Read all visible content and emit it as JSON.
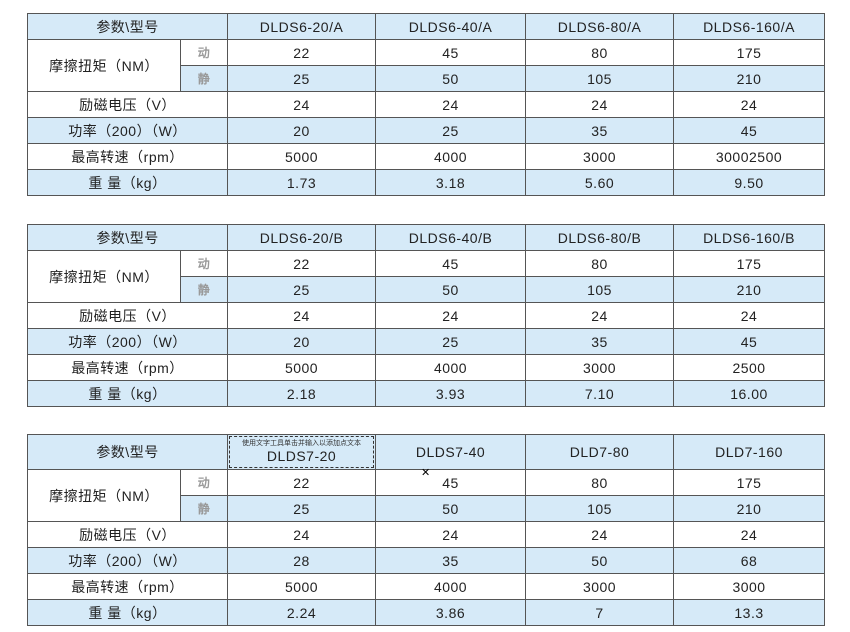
{
  "tables": [
    {
      "header_label": "参数\\型号",
      "models": [
        "DLDS6-20/A",
        "DLDS6-40/A",
        "DLDS6-80/A",
        "DLDS6-160/A"
      ],
      "torque_label": "摩擦扭矩（NM）",
      "dynamic_icon": "动",
      "static_icon": "静",
      "rows": [
        [
          "22",
          "45",
          "80",
          "175"
        ],
        [
          "25",
          "50",
          "105",
          "210"
        ]
      ],
      "other_rows": [
        {
          "label": "励磁电压（V）",
          "values": [
            "24",
            "24",
            "24",
            "24"
          ]
        },
        {
          "label": "功率（200）（W）",
          "values": [
            "20",
            "25",
            "35",
            "45"
          ]
        },
        {
          "label": "最高转速（rpm）",
          "values": [
            "5000",
            "4000",
            "3000",
            "30002500"
          ]
        },
        {
          "label": "重 量（kg）",
          "values": [
            "1.73",
            "3.18",
            "5.60",
            "9.50"
          ]
        }
      ]
    },
    {
      "header_label": "参数\\型号",
      "models": [
        "DLDS6-20/B",
        "DLDS6-40/B",
        "DLDS6-80/B",
        "DLDS6-160/B"
      ],
      "torque_label": "摩擦扭矩（NM）",
      "dynamic_icon": "动",
      "static_icon": "静",
      "rows": [
        [
          "22",
          "45",
          "80",
          "175"
        ],
        [
          "25",
          "50",
          "105",
          "210"
        ]
      ],
      "other_rows": [
        {
          "label": "励磁电压（V）",
          "values": [
            "24",
            "24",
            "24",
            "24"
          ]
        },
        {
          "label": "功率（200）（W）",
          "values": [
            "20",
            "25",
            "35",
            "45"
          ]
        },
        {
          "label": "最高转速（rpm）",
          "values": [
            "5000",
            "4000",
            "3000",
            "2500"
          ]
        },
        {
          "label": "重 量（kg）",
          "values": [
            "2.18",
            "3.93",
            "7.10",
            "16.00"
          ]
        }
      ]
    },
    {
      "header_label": "参数\\型号",
      "models": [
        "DLDS7-20",
        "DLDS7-40",
        "DLD7-80",
        "DLD7-160"
      ],
      "torque_label": "摩擦扭矩（NM）",
      "dynamic_icon": "动",
      "static_icon": "静",
      "rows": [
        [
          "22",
          "45",
          "80",
          "175"
        ],
        [
          "25",
          "50",
          "105",
          "210"
        ]
      ],
      "other_rows": [
        {
          "label": "励磁电压（V）",
          "values": [
            "24",
            "24",
            "24",
            "24"
          ]
        },
        {
          "label": "功率（200）（W）",
          "values": [
            "28",
            "35",
            "50",
            "68"
          ]
        },
        {
          "label": "最高转速（rpm）",
          "values": [
            "5000",
            "4000",
            "3000",
            "3000"
          ]
        },
        {
          "label": "重 量（kg）",
          "values": [
            "2.24",
            "3.86",
            "7",
            "13.3"
          ]
        }
      ]
    }
  ],
  "text_box_placeholder": "使用文字工具单击并输入以添加点文本",
  "cursor_glyph": "✕",
  "colors": {
    "row_blue": "#d6eaf8",
    "border": "#555555"
  }
}
